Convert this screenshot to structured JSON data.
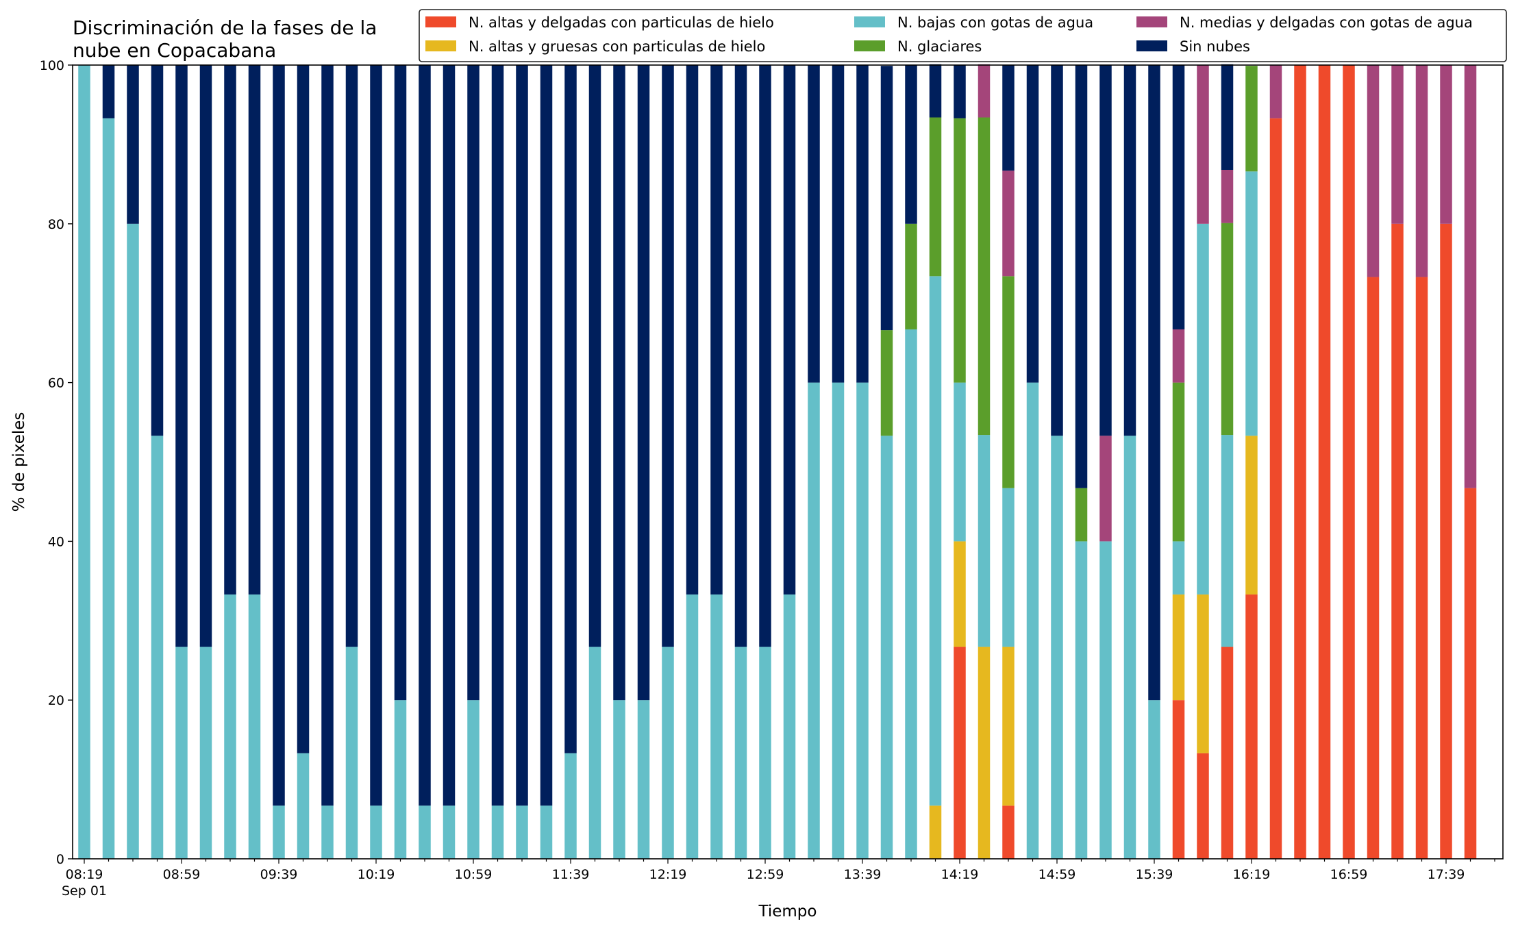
{
  "chart_data": {
    "type": "bar",
    "stacked": true,
    "title": "Discriminación de la fases de la nube en Copacabana",
    "title_lines": [
      "Discriminación de la fases de la",
      "nube en Copacabana"
    ],
    "xlabel": "Tiempo",
    "ylabel": "% de pixeles",
    "ylim": [
      0,
      100
    ],
    "yticks": [
      0,
      20,
      40,
      60,
      80,
      100
    ],
    "xtick_labels": [
      "08:19",
      "08:59",
      "09:39",
      "10:19",
      "10:59",
      "11:39",
      "12:19",
      "12:59",
      "13:39",
      "14:19",
      "14:59",
      "15:39",
      "16:19",
      "16:59",
      "17:39"
    ],
    "xtick_sublabel": "Sep 01",
    "legend_position": "top-right",
    "grid": false,
    "colors": {
      "altas_delgadas": "#ef4a2b",
      "altas_gruesas": "#e6b81f",
      "bajas": "#64bfc8",
      "glaciares": "#5b9e2b",
      "medias": "#a4457a",
      "sin_nubes": "#001f5c"
    },
    "categories": [
      "08:19",
      "08:29",
      "08:39",
      "08:49",
      "08:59",
      "09:09",
      "09:19",
      "09:29",
      "09:39",
      "09:49",
      "09:59",
      "10:09",
      "10:19",
      "10:29",
      "10:39",
      "10:49",
      "10:59",
      "11:09",
      "11:19",
      "11:29",
      "11:39",
      "11:49",
      "11:59",
      "12:09",
      "12:19",
      "12:29",
      "12:39",
      "12:49",
      "12:59",
      "13:09",
      "13:19",
      "13:29",
      "13:39",
      "13:49",
      "13:59",
      "14:09",
      "14:19",
      "14:29",
      "14:39",
      "14:49",
      "14:59",
      "15:09",
      "15:19",
      "15:29",
      "15:39",
      "15:49",
      "15:59",
      "16:09",
      "16:19",
      "16:29",
      "16:39",
      "16:49",
      "16:59",
      "17:09",
      "17:19",
      "17:29",
      "17:39",
      "17:49"
    ],
    "series": [
      {
        "name": "N. altas y delgadas con particulas de hielo",
        "key": "altas_delgadas",
        "values": [
          0,
          0,
          0,
          0,
          0,
          0,
          0,
          0,
          0,
          0,
          0,
          0,
          0,
          0,
          0,
          0,
          0,
          0,
          0,
          0,
          0,
          0,
          0,
          0,
          0,
          0,
          0,
          0,
          0,
          0,
          0,
          0,
          0,
          0,
          0,
          0,
          26.7,
          0,
          6.7,
          0,
          0,
          0,
          0,
          0,
          0,
          20,
          13.3,
          26.7,
          33.3,
          93.3,
          100,
          100,
          100,
          73.3,
          80,
          73.3,
          80,
          46.7
        ]
      },
      {
        "name": "N. altas y gruesas con particulas de hielo",
        "key": "altas_gruesas",
        "values": [
          0,
          0,
          0,
          0,
          0,
          0,
          0,
          0,
          0,
          0,
          0,
          0,
          0,
          0,
          0,
          0,
          0,
          0,
          0,
          0,
          0,
          0,
          0,
          0,
          0,
          0,
          0,
          0,
          0,
          0,
          0,
          0,
          0,
          0,
          0,
          6.7,
          13.3,
          26.7,
          20,
          0,
          0,
          0,
          0,
          0,
          0,
          13.3,
          20,
          0,
          20,
          0,
          0,
          0,
          0,
          0,
          0,
          0,
          0,
          0
        ]
      },
      {
        "name": "N. bajas con gotas de agua",
        "key": "bajas",
        "values": [
          100,
          93.3,
          80,
          53.3,
          26.7,
          26.7,
          33.3,
          33.3,
          6.7,
          13.3,
          6.7,
          26.7,
          6.7,
          20,
          6.7,
          6.7,
          20,
          6.7,
          6.7,
          6.7,
          13.3,
          26.7,
          20,
          20,
          26.7,
          33.3,
          33.3,
          26.7,
          26.7,
          33.3,
          60,
          60,
          60,
          53.3,
          66.7,
          66.7,
          20,
          26.7,
          20,
          60,
          53.3,
          40,
          40,
          53.3,
          20,
          6.7,
          46.7,
          26.7,
          33.3,
          0,
          0,
          0,
          0,
          0,
          0,
          0,
          0,
          0
        ]
      },
      {
        "name": "N. glaciares",
        "key": "glaciares",
        "values": [
          0,
          0,
          0,
          0,
          0,
          0,
          0,
          0,
          0,
          0,
          0,
          0,
          0,
          0,
          0,
          0,
          0,
          0,
          0,
          0,
          0,
          0,
          0,
          0,
          0,
          0,
          0,
          0,
          0,
          0,
          0,
          0,
          0,
          13.3,
          13.3,
          20,
          33.3,
          40,
          26.7,
          0,
          0,
          6.7,
          0,
          0,
          0,
          20,
          0,
          26.7,
          13.3,
          0,
          0,
          0,
          0,
          0,
          0,
          0,
          0,
          0
        ]
      },
      {
        "name": "N. medias y delgadas con gotas de agua",
        "key": "medias",
        "values": [
          0,
          0,
          0,
          0,
          0,
          0,
          0,
          0,
          0,
          0,
          0,
          0,
          0,
          0,
          0,
          0,
          0,
          0,
          0,
          0,
          0,
          0,
          0,
          0,
          0,
          0,
          0,
          0,
          0,
          0,
          0,
          0,
          0,
          0,
          0,
          0,
          0,
          6.7,
          13.3,
          0,
          0,
          0,
          13.3,
          0,
          0,
          6.7,
          20,
          6.7,
          0,
          6.7,
          0,
          0,
          0,
          26.7,
          20,
          26.7,
          20,
          53.3
        ]
      },
      {
        "name": "Sin nubes",
        "key": "sin_nubes",
        "values": [
          0,
          6.7,
          20,
          46.7,
          73.3,
          73.3,
          66.7,
          66.7,
          93.3,
          86.7,
          93.3,
          73.3,
          93.3,
          80,
          93.3,
          93.3,
          80,
          93.3,
          93.3,
          93.3,
          86.7,
          73.3,
          80,
          80,
          73.3,
          66.7,
          66.7,
          73.3,
          73.3,
          66.7,
          40,
          40,
          40,
          33.3,
          20,
          6.7,
          6.7,
          0,
          13.3,
          40,
          46.7,
          53.3,
          46.7,
          46.7,
          80,
          33.3,
          0,
          13.3,
          0,
          0,
          0,
          0,
          0,
          0,
          0,
          0,
          0,
          0
        ]
      }
    ]
  }
}
